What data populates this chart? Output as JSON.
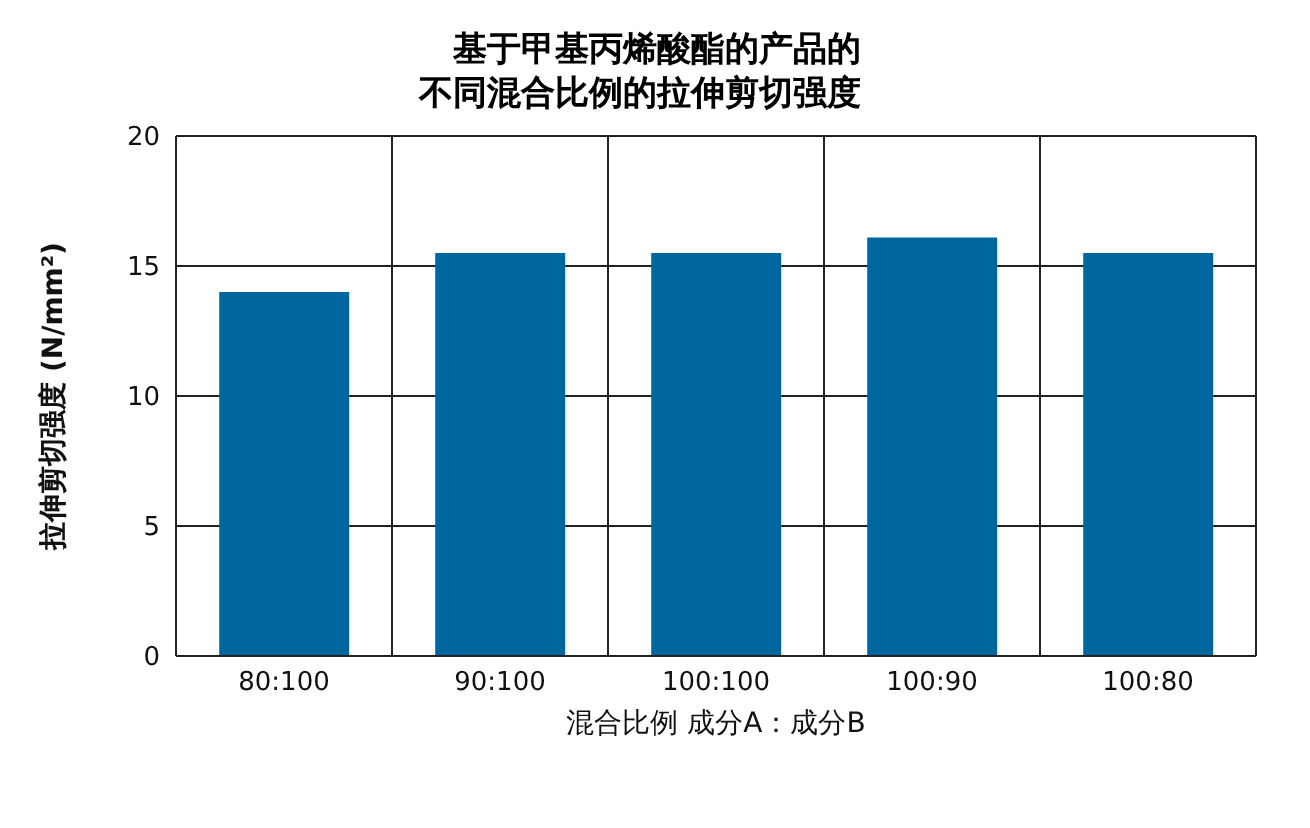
{
  "chart_data": {
    "type": "bar",
    "title": "基于甲基丙烯酸酯的产品的不同混合比例的拉伸剪切强度",
    "xlabel": "混合比例 成分A：成分B",
    "ylabel": "拉伸剪切强度 (N/mm²)",
    "categories": [
      "80:100",
      "90:100",
      "100:100",
      "100:90",
      "100:80"
    ],
    "values": [
      14,
      15.5,
      15.5,
      16.1,
      15.5
    ],
    "color": "#00679e",
    "ylim": [
      0,
      20
    ],
    "yticks": [
      0,
      5,
      10,
      15,
      20
    ],
    "grid": true
  }
}
